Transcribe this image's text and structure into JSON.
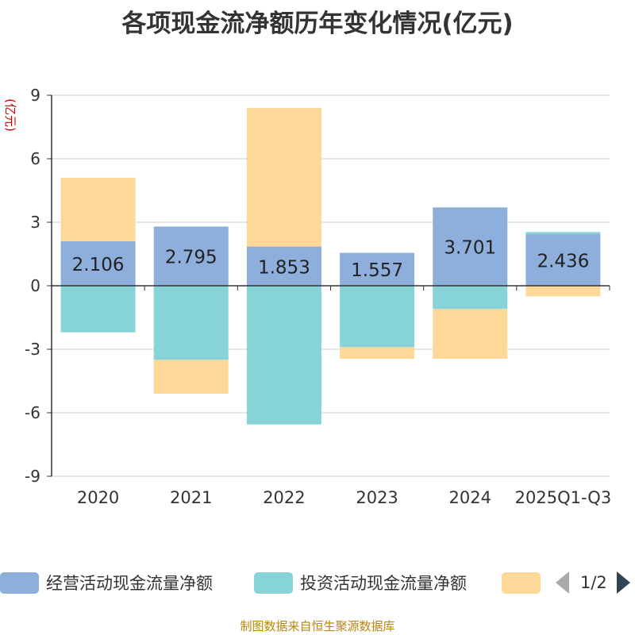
{
  "chart_data": {
    "type": "bar",
    "stacked": true,
    "title": "各项现金流净额历年变化情况(亿元)",
    "ylabel": "(亿元)",
    "xlabel": "",
    "ylim": [
      -9,
      9
    ],
    "yticks": [
      9,
      6,
      3,
      0,
      -3,
      -6,
      -9
    ],
    "categories": [
      "2020",
      "2021",
      "2022",
      "2023",
      "2024",
      "2025Q1-Q3"
    ],
    "series": [
      {
        "name": "经营活动现金流量净额",
        "color": "#8eaedb",
        "values": [
          2.106,
          2.795,
          1.853,
          1.557,
          3.701,
          2.436
        ],
        "data_labels": [
          "2.106",
          "2.795",
          "1.853",
          "1.557",
          "3.701",
          "2.436"
        ]
      },
      {
        "name": "投资活动现金流量净额",
        "color": "#86d4d8",
        "values": [
          -2.2,
          -3.5,
          -6.55,
          -2.9,
          -1.1,
          0.1
        ]
      },
      {
        "name": "",
        "color": "#fdd898",
        "values": [
          3.0,
          -1.6,
          6.55,
          -0.55,
          -2.35,
          -0.5
        ]
      }
    ],
    "grid": true,
    "legend_position": "bottom"
  },
  "legend": {
    "items": [
      {
        "label": "经营活动现金流量净额",
        "color": "#8eaedb"
      },
      {
        "label": "投资活动现金流量净额",
        "color": "#86d4d8"
      },
      {
        "label": "",
        "color": "#fdd898"
      }
    ],
    "page": "1/2"
  },
  "source": "制图数据来自恒生聚源数据库"
}
